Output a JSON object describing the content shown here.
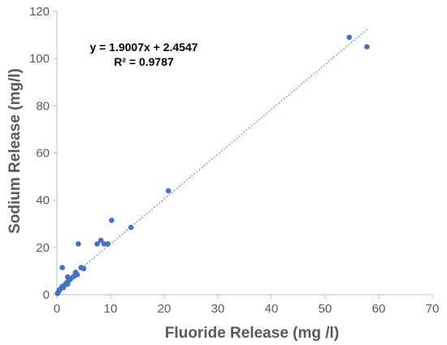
{
  "chart_data": {
    "type": "scatter",
    "title": "",
    "xlabel": "Fluoride Release (mg /l)",
    "ylabel": "Sodium Release (mg/l)",
    "xlim": [
      0,
      70
    ],
    "ylim": [
      0,
      120
    ],
    "x_ticks": [
      "0",
      "10",
      "20",
      "30",
      "40",
      "50",
      "60",
      "70"
    ],
    "y_ticks": [
      "0",
      "20",
      "40",
      "60",
      "80",
      "100",
      "120"
    ],
    "grid": false,
    "legend": "none",
    "marker_color": "#4472C4",
    "trendline": {
      "type": "linear",
      "slope": 1.9007,
      "intercept": 2.4547,
      "x_range": [
        0,
        57.8
      ],
      "style": "dotted",
      "color": "#4472C4"
    },
    "annotations": [
      "y = 1.9007x + 2.4547",
      "R² = 0.9787"
    ],
    "series": [
      {
        "points": [
          {
            "x": 0.1,
            "y": 0.5
          },
          {
            "x": 0.3,
            "y": 1.2
          },
          {
            "x": 0.5,
            "y": 2.0
          },
          {
            "x": 0.8,
            "y": 2.8
          },
          {
            "x": 1.0,
            "y": 3.5
          },
          {
            "x": 1.2,
            "y": 3.0
          },
          {
            "x": 1.5,
            "y": 4.2
          },
          {
            "x": 1.8,
            "y": 5.0
          },
          {
            "x": 2.0,
            "y": 4.5
          },
          {
            "x": 2.2,
            "y": 6.0
          },
          {
            "x": 2.0,
            "y": 7.5
          },
          {
            "x": 2.5,
            "y": 6.5
          },
          {
            "x": 3.0,
            "y": 7.5
          },
          {
            "x": 3.3,
            "y": 8.0
          },
          {
            "x": 3.5,
            "y": 9.5
          },
          {
            "x": 3.8,
            "y": 8.5
          },
          {
            "x": 4.5,
            "y": 11.5
          },
          {
            "x": 5.0,
            "y": 11.0
          },
          {
            "x": 1.0,
            "y": 11.5
          },
          {
            "x": 4.0,
            "y": 21.5
          },
          {
            "x": 7.5,
            "y": 21.5
          },
          {
            "x": 8.2,
            "y": 23.0
          },
          {
            "x": 8.8,
            "y": 21.5
          },
          {
            "x": 9.5,
            "y": 21.5
          },
          {
            "x": 10.2,
            "y": 31.5
          },
          {
            "x": 13.8,
            "y": 28.5
          },
          {
            "x": 20.8,
            "y": 44.0
          },
          {
            "x": 54.5,
            "y": 109.0
          },
          {
            "x": 57.8,
            "y": 105.0
          }
        ]
      }
    ]
  }
}
